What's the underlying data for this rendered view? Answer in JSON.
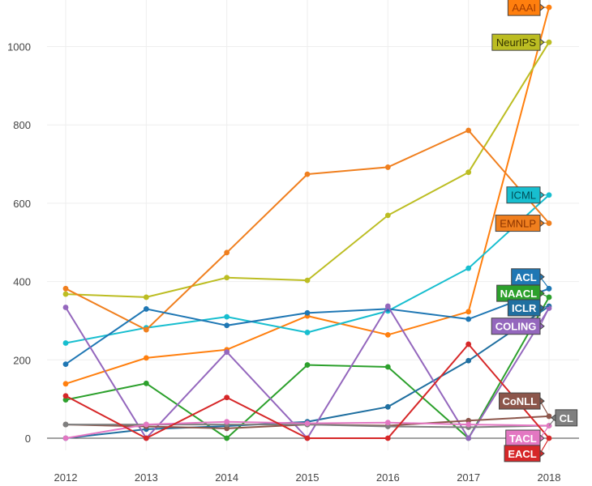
{
  "chart_data": {
    "type": "line",
    "title": "",
    "xlabel": "",
    "ylabel": "",
    "x": [
      2012,
      2013,
      2014,
      2015,
      2016,
      2017,
      2018
    ],
    "xlim": [
      2012,
      2018
    ],
    "ylim": [
      -30,
      1100
    ],
    "yticks": [
      0,
      200,
      400,
      600,
      800,
      1000
    ],
    "ytick_labels": [
      "0",
      "200",
      "400",
      "600",
      "800",
      "1000"
    ],
    "xtick_labels": [
      "2012",
      "2013",
      "2014",
      "2015",
      "2016",
      "2017",
      "2018"
    ],
    "grid": true,
    "legend": "labels at line ends",
    "series": [
      {
        "name": "AAAI",
        "color": "#ff7f0e",
        "label_text": "#a33c00",
        "values": [
          139,
          205,
          226,
          312,
          264,
          323,
          1100
        ],
        "label_value": 1100
      },
      {
        "name": "NeurIPS",
        "color": "#bcbd22",
        "label_text": "#333300",
        "values": [
          368,
          360,
          410,
          403,
          569,
          679,
          1011
        ],
        "label_value": 1011
      },
      {
        "name": "ICML",
        "color": "#17becf",
        "label_text": "#004c55",
        "values": [
          243,
          282,
          310,
          270,
          325,
          434,
          621
        ],
        "label_value": 621
      },
      {
        "name": "EMNLP",
        "color": "#f07f1e",
        "label_text": "#8a3300",
        "values": [
          382,
          277,
          474,
          674,
          692,
          786,
          549
        ],
        "label_value": 549
      },
      {
        "name": "ACL",
        "color": "#1f77b4",
        "label_text": "#ffffff",
        "values": [
          189,
          330,
          288,
          320,
          330,
          304,
          382
        ],
        "label_value": 412
      },
      {
        "name": "NAACL",
        "color": "#2ca02c",
        "label_text": "#ffffff",
        "values": [
          98,
          140,
          0,
          187,
          182,
          0,
          360
        ],
        "label_value": 370
      },
      {
        "name": "ICLR",
        "color": "#1f6fa0",
        "label_text": "#ffffff",
        "values": [
          0,
          23,
          31,
          42,
          80,
          198,
          337
        ],
        "label_value": 333
      },
      {
        "name": "COLING",
        "color": "#9467bd",
        "label_text": "#ffffff",
        "values": [
          334,
          0,
          220,
          0,
          337,
          0,
          332
        ],
        "label_value": 286
      },
      {
        "name": "CoNLL",
        "color": "#8c564b",
        "label_text": "#ffffff",
        "values": [
          35,
          30,
          25,
          35,
          32,
          45,
          56
        ],
        "label_value": 95
      },
      {
        "name": "CL",
        "color": "#7f7f7f",
        "label_text": "#ffffff",
        "values": [
          35,
          35,
          35,
          35,
          30,
          28,
          32
        ],
        "label_value": 52
      },
      {
        "name": "TACL",
        "color": "#e377c2",
        "label_text": "#ffffff",
        "values": [
          0,
          35,
          42,
          38,
          40,
          35,
          32
        ],
        "label_value": 0
      },
      {
        "name": "EACL",
        "color": "#d62728",
        "label_text": "#ffffff",
        "values": [
          108,
          0,
          104,
          0,
          0,
          240,
          0
        ],
        "label_value": -39
      }
    ]
  }
}
